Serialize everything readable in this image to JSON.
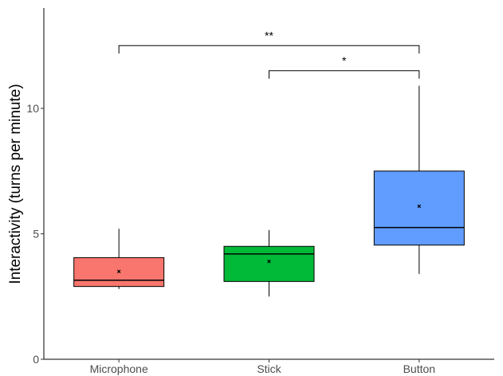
{
  "chart_data": {
    "type": "box",
    "title": "",
    "xlabel": "",
    "ylabel": "Interactivity (turns per minute)",
    "ylim": [
      0,
      14
    ],
    "yticks": [
      0,
      5,
      10
    ],
    "grid": false,
    "legend": "none",
    "categories": [
      "Microphone",
      "Stick",
      "Button"
    ],
    "boxes": [
      {
        "name": "Microphone",
        "min": 2.8,
        "q1": 2.9,
        "median": 3.15,
        "q3": 4.05,
        "max": 5.2,
        "mean": 3.5,
        "color": "#F8766D"
      },
      {
        "name": "Stick",
        "min": 2.5,
        "q1": 3.1,
        "median": 4.2,
        "q3": 4.5,
        "max": 5.15,
        "mean": 3.9,
        "color": "#00BA38"
      },
      {
        "name": "Button",
        "min": 3.4,
        "q1": 4.55,
        "median": 5.25,
        "q3": 7.5,
        "max": 10.9,
        "mean": 6.1,
        "color": "#619CFF"
      }
    ],
    "significance": [
      {
        "from": "Microphone",
        "to": "Button",
        "y": 12.5,
        "label": "**"
      },
      {
        "from": "Stick",
        "to": "Button",
        "y": 11.5,
        "label": "*"
      }
    ]
  }
}
